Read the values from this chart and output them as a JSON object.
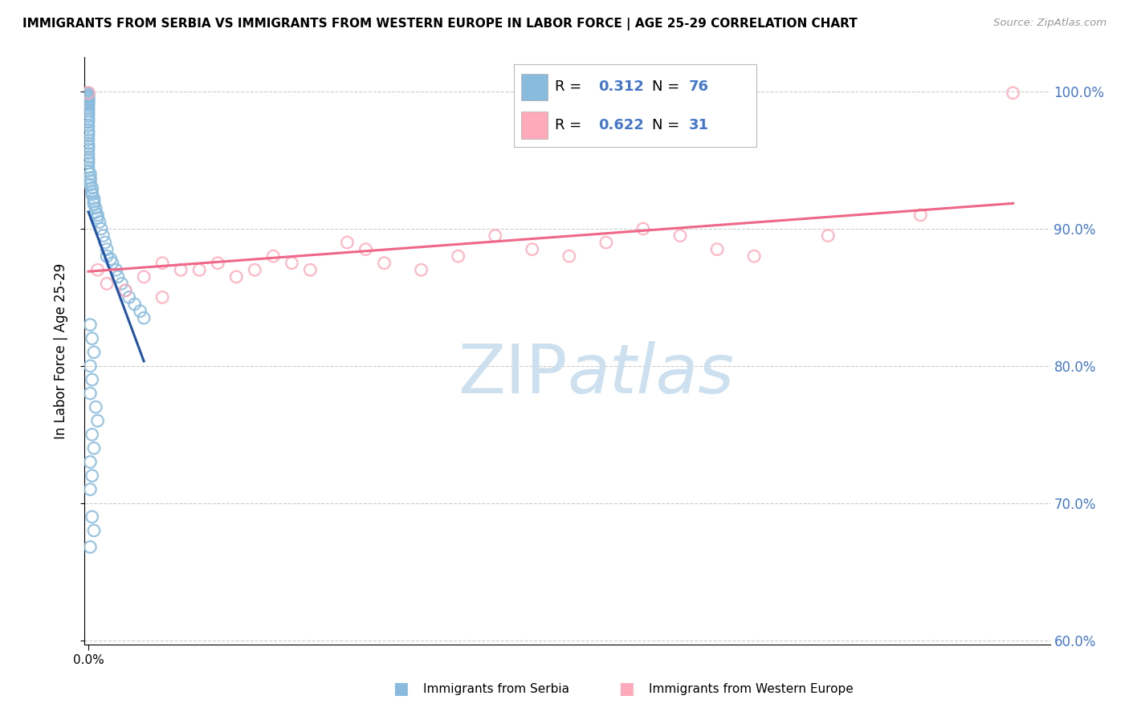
{
  "title": "IMMIGRANTS FROM SERBIA VS IMMIGRANTS FROM WESTERN EUROPE IN LABOR FORCE | AGE 25-29 CORRELATION CHART",
  "source": "Source: ZipAtlas.com",
  "ylabel": "In Labor Force | Age 25-29",
  "r_serbia": 0.312,
  "n_serbia": 76,
  "r_western": 0.622,
  "n_western": 31,
  "serbia_color": "#88bbdd",
  "serbia_edge_color": "#6699cc",
  "western_color": "#ffaabb",
  "western_edge_color": "#ee88aa",
  "serbia_line_color": "#2255aa",
  "western_line_color": "#ee6688",
  "right_tick_color": "#4477cc",
  "legend_label_serbia": "Immigrants from Serbia",
  "legend_label_western": "Immigrants from Western Europe",
  "ytick_vals": [
    0.6,
    0.7,
    0.8,
    0.9,
    1.0
  ],
  "ytick_labels": [
    "60.0%",
    "70.0%",
    "80.0%",
    "90.0%",
    "100.0%"
  ],
  "watermark_color": "#cce0f0",
  "serbia_x": [
    0.0,
    0.0,
    0.0,
    0.0,
    0.0,
    0.0,
    0.0,
    0.0,
    0.0,
    0.0,
    0.0,
    0.0,
    0.0,
    0.0,
    0.0,
    0.0,
    0.0,
    0.0,
    0.0,
    0.0,
    0.0,
    0.0,
    0.0,
    0.0,
    0.0,
    0.0,
    0.0,
    0.0,
    0.0,
    0.0,
    0.0001,
    0.0001,
    0.0001,
    0.0001,
    0.0002,
    0.0002,
    0.0002,
    0.0003,
    0.0003,
    0.0003,
    0.0004,
    0.0004,
    0.0005,
    0.0005,
    0.0006,
    0.0007,
    0.0008,
    0.0009,
    0.001,
    0.001,
    0.0012,
    0.0013,
    0.0015,
    0.0016,
    0.0018,
    0.002,
    0.0022,
    0.0025,
    0.0028,
    0.003,
    0.0001,
    0.0002,
    0.0003,
    0.0001,
    0.0002,
    0.0001,
    0.0004,
    0.0005,
    0.0002,
    0.0003,
    0.0001,
    0.0002,
    0.0001,
    0.0002,
    0.0003,
    0.0001
  ],
  "serbia_y": [
    0.999,
    0.998,
    0.997,
    0.996,
    0.995,
    0.994,
    0.993,
    0.992,
    0.991,
    0.99,
    0.988,
    0.986,
    0.984,
    0.982,
    0.98,
    0.978,
    0.975,
    0.972,
    0.97,
    0.968,
    0.965,
    0.962,
    0.96,
    0.958,
    0.955,
    0.952,
    0.95,
    0.948,
    0.945,
    0.942,
    0.94,
    0.937,
    0.935,
    0.932,
    0.93,
    0.927,
    0.925,
    0.922,
    0.92,
    0.918,
    0.915,
    0.912,
    0.91,
    0.908,
    0.905,
    0.9,
    0.895,
    0.89,
    0.885,
    0.88,
    0.878,
    0.875,
    0.87,
    0.865,
    0.86,
    0.855,
    0.85,
    0.845,
    0.84,
    0.835,
    0.83,
    0.82,
    0.81,
    0.8,
    0.79,
    0.78,
    0.77,
    0.76,
    0.75,
    0.74,
    0.73,
    0.72,
    0.71,
    0.69,
    0.68,
    0.668
  ],
  "western_x": [
    0.0,
    0.0005,
    0.001,
    0.002,
    0.003,
    0.004,
    0.004,
    0.005,
    0.006,
    0.007,
    0.008,
    0.009,
    0.01,
    0.011,
    0.012,
    0.014,
    0.015,
    0.016,
    0.018,
    0.02,
    0.022,
    0.024,
    0.026,
    0.028,
    0.03,
    0.032,
    0.034,
    0.036,
    0.04,
    0.045,
    0.05
  ],
  "western_y": [
    0.999,
    0.87,
    0.86,
    0.855,
    0.865,
    0.875,
    0.85,
    0.87,
    0.87,
    0.875,
    0.865,
    0.87,
    0.88,
    0.875,
    0.87,
    0.89,
    0.885,
    0.875,
    0.87,
    0.88,
    0.895,
    0.885,
    0.88,
    0.89,
    0.9,
    0.895,
    0.885,
    0.88,
    0.895,
    0.91,
    0.999
  ],
  "xlim": [
    -0.0002,
    0.052
  ],
  "ylim": [
    0.597,
    1.025
  ]
}
